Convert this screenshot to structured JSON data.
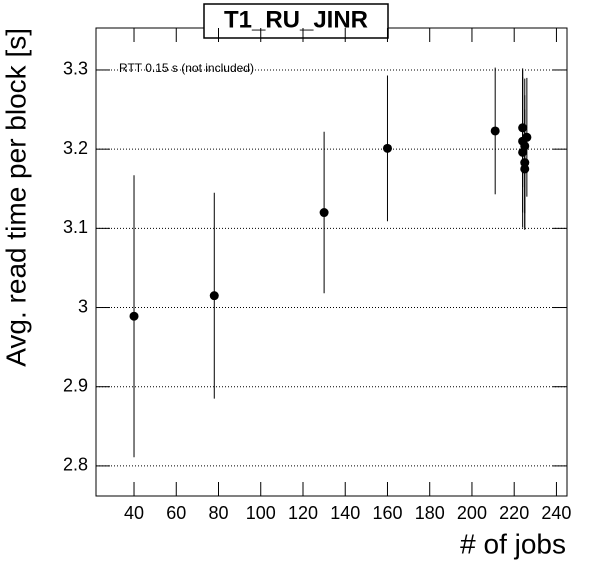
{
  "chart_data": {
    "type": "scatter",
    "title": "T1_RU_JINR",
    "annotation": "RTT 0.15 s (not included)",
    "x_label": "# of jobs",
    "y_label": "Avg. read time per block [s]",
    "xlim": [
      22,
      245
    ],
    "ylim": [
      2.762,
      3.353
    ],
    "xticks": [
      40,
      60,
      80,
      100,
      120,
      140,
      160,
      180,
      200,
      220,
      240
    ],
    "yticks": [
      2.8,
      2.9,
      3,
      3.1,
      3.2,
      3.3
    ],
    "grid_y": true,
    "series": [
      {
        "color": "#000000",
        "x": [
          40,
          78,
          130,
          160,
          211,
          224,
          224,
          224,
          225,
          225,
          225,
          226
        ],
        "values": [
          2.989,
          3.015,
          3.12,
          3.201,
          3.223,
          3.227,
          3.21,
          3.196,
          3.183,
          3.175,
          3.204,
          3.215
        ],
        "errors": [
          0.178,
          0.13,
          0.102,
          0.092,
          0.08,
          0.075,
          0.09,
          0.095,
          0.085,
          0.075,
          0.085,
          0.075
        ]
      }
    ]
  }
}
